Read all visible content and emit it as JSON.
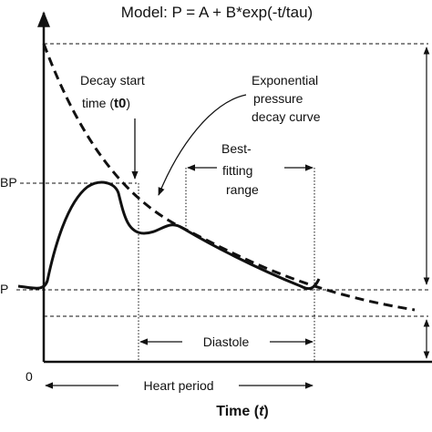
{
  "title": "Model:    P = A + B*exp(-t/tau)",
  "y_labels": {
    "upper": "BP",
    "lower": "P",
    "origin": "0"
  },
  "annotations": {
    "decay_start_line1": "Decay start",
    "decay_start_line2_prefix": "time (",
    "decay_start_line2_bold": "t0",
    "decay_start_line2_suffix": ")",
    "exp_curve_line1": "Exponential",
    "exp_curve_line2": "pressure",
    "exp_curve_line3": "decay curve",
    "best_fit_line1": "Best-",
    "best_fit_line2": "fitting",
    "best_fit_line3": "range"
  },
  "intervals": {
    "diastole": "Diastole",
    "heart_period": "Heart period"
  },
  "x_axis": {
    "label_prefix": "Time (",
    "label_var": "t",
    "label_suffix": ")"
  },
  "colors": {
    "ink": "#111111",
    "background": "#ffffff"
  }
}
